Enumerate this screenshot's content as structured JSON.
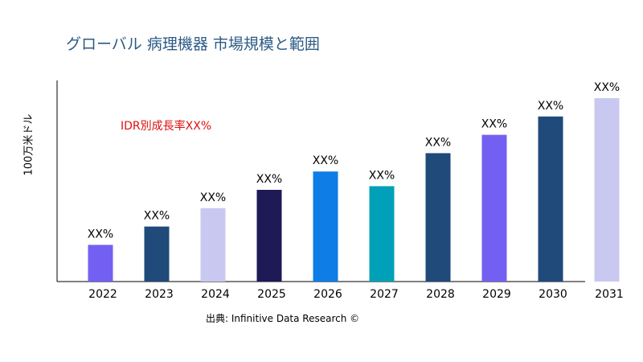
{
  "title": "グローバル 病理機器 市場規模と範囲",
  "source": "出典: Infinitive Data Research ©",
  "chart_data": {
    "type": "bar",
    "title": "グローバル 病理機器 市場規模と範囲",
    "ylabel": "100万米ドル",
    "xlabel": "",
    "annotation": "IDR別成長率XX%",
    "categories": [
      "2022",
      "2023",
      "2024",
      "2025",
      "2026",
      "2027",
      "2028",
      "2029",
      "2030",
      "2031"
    ],
    "values": [
      20,
      30,
      40,
      50,
      60,
      52,
      70,
      80,
      90,
      100
    ],
    "data_labels": [
      "XX%",
      "XX%",
      "XX%",
      "XX%",
      "XX%",
      "XX%",
      "XX%",
      "XX%",
      "XX%",
      "XX%"
    ],
    "colors": [
      "#7360f2",
      "#1f4a7a",
      "#c8c8f0",
      "#1e1a55",
      "#0f7de6",
      "#00a0b8",
      "#1f4a7a",
      "#7360f2",
      "#1f4a7a",
      "#c8c8f0"
    ],
    "ylim": [
      0,
      100
    ],
    "grid": false,
    "legend": "none"
  }
}
